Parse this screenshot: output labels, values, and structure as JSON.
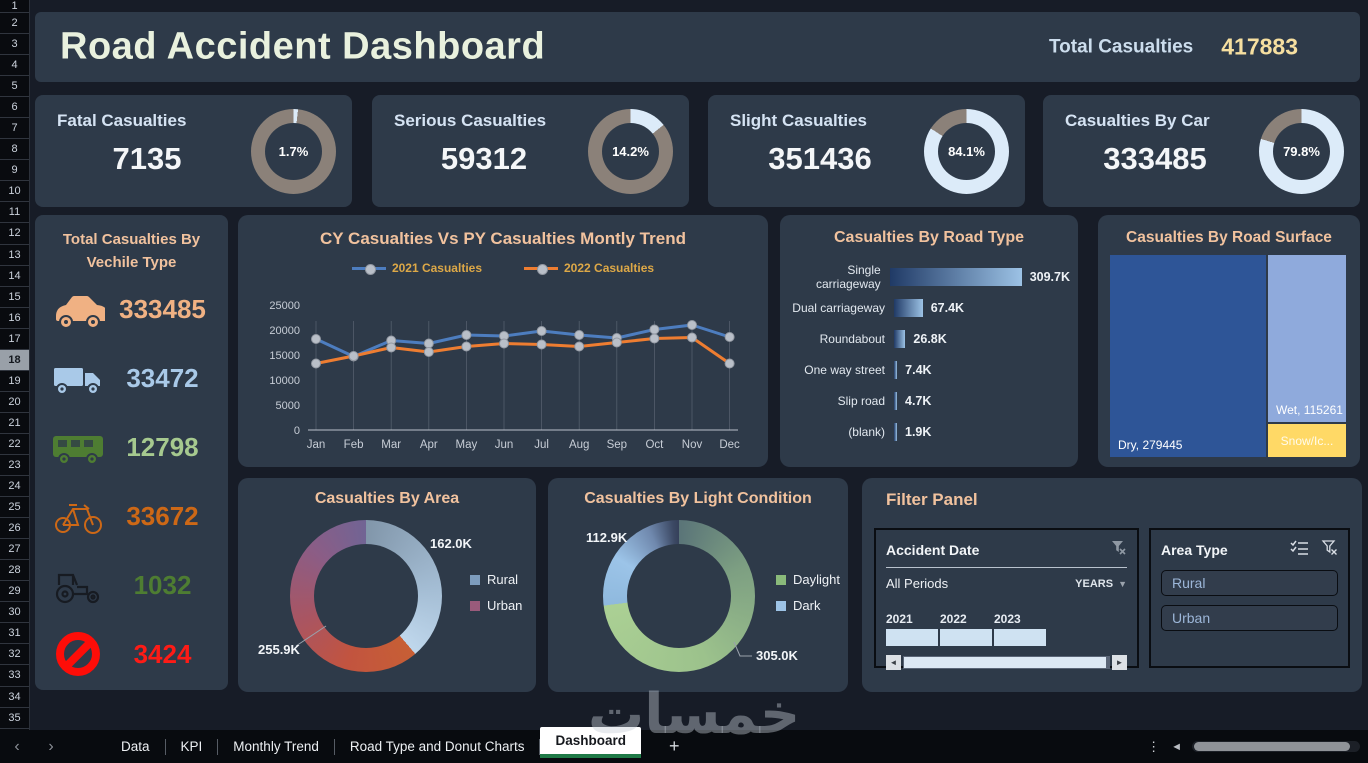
{
  "header": {
    "title": "Road Accident Dashboard",
    "total_label": "Total Casualties",
    "total_value": "417883"
  },
  "kpi_colors": {
    "value": "#dcebf9",
    "rest": "#8b8179"
  },
  "kpis": [
    {
      "title": "Fatal Casualties",
      "value": "7135",
      "pct": "1.7%",
      "pct_num": 1.7
    },
    {
      "title": "Serious Casualties",
      "value": "59312",
      "pct": "14.2%",
      "pct_num": 14.2
    },
    {
      "title": "Slight Casualties",
      "value": "351436",
      "pct": "84.1%",
      "pct_num": 84.1
    },
    {
      "title": "Casualties By Car",
      "value": "333485",
      "pct": "79.8%",
      "pct_num": 79.8
    }
  ],
  "vehicle_panel": {
    "title_line1": "Total Casualties By",
    "title_line2": "Vechile Type",
    "items": [
      {
        "icon": "car-icon",
        "value": "333485",
        "color": "#f0b183"
      },
      {
        "icon": "truck-icon",
        "value": "33472",
        "color": "#a9c9e8"
      },
      {
        "icon": "bus-icon",
        "value": "12798",
        "color": "#a6c98f"
      },
      {
        "icon": "bicycle-icon",
        "value": "33672",
        "color": "#cd6816"
      },
      {
        "icon": "tractor-icon",
        "value": "1032",
        "color": "#4e7d32"
      },
      {
        "icon": "no-entry-icon",
        "value": "3424",
        "color": "#fe1b16"
      }
    ]
  },
  "chart_data": [
    {
      "type": "line",
      "title": "CY Casualties Vs PY Casualties Montly Trend",
      "categories": [
        "Jan",
        "Feb",
        "Mar",
        "Apr",
        "May",
        "Jun",
        "Jul",
        "Aug",
        "Sep",
        "Oct",
        "Nov",
        "Dec"
      ],
      "series": [
        {
          "name": "2021 Casualties",
          "color": "#4d7dbf",
          "values": [
            18200,
            14700,
            17900,
            17300,
            19000,
            18800,
            19800,
            19000,
            18400,
            20100,
            21000,
            18600
          ]
        },
        {
          "name": "2022 Casualties",
          "color": "#ee7d31",
          "values": [
            13300,
            14800,
            16500,
            15600,
            16700,
            17300,
            17100,
            16700,
            17500,
            18300,
            18500,
            13300
          ]
        }
      ],
      "y_ticks": [
        0,
        5000,
        10000,
        15000,
        20000,
        25000
      ],
      "ylim": [
        0,
        25000
      ],
      "legend_position": "top",
      "grid": "category-droplines"
    },
    {
      "type": "bar",
      "title": "Casualties By Road Type",
      "categories": [
        "Single carriageway",
        "Dual carriageway",
        "Roundabout",
        "One way street",
        "Slip road",
        "(blank)"
      ],
      "values": [
        309.7,
        67.4,
        26.8,
        7.4,
        4.7,
        1.9
      ],
      "value_labels": [
        "309.7K",
        "67.4K",
        "26.8K",
        "7.4K",
        "4.7K",
        "1.9K"
      ],
      "orientation": "horizontal"
    },
    {
      "type": "heatmap",
      "subtype": "treemap",
      "title": "Casualties By Road Surface",
      "items": [
        {
          "label": "Dry, 279445",
          "value": 279445,
          "color": "#2e5597"
        },
        {
          "label": "Wet, 115261",
          "value": 115261,
          "color": "#8faadc"
        },
        {
          "label": "Snow/Ic...",
          "value": 23177,
          "color": "#ffd966"
        }
      ]
    },
    {
      "type": "pie",
      "subtype": "donut",
      "title": "Casualties By Area",
      "legend": [
        {
          "name": "Rural",
          "color": "#7d9cbd"
        },
        {
          "name": "Urban",
          "color": "#9a5b7b"
        }
      ],
      "labels": [
        "162.0K",
        "255.9K"
      ],
      "values": [
        162000,
        255900
      ],
      "stops_a": [
        [
          "#8196aa",
          0
        ],
        [
          "#a4bdd4",
          0.6
        ],
        [
          "#bfd7ec",
          1
        ]
      ],
      "stops_b": [
        [
          "#c75f35",
          0
        ],
        [
          "#c2543f",
          0.25
        ],
        [
          "#a95562",
          0.5
        ],
        [
          "#8b5d86",
          0.78
        ],
        [
          "#716494",
          1
        ]
      ]
    },
    {
      "type": "pie",
      "subtype": "donut",
      "title": "Casualties By Light Condition",
      "legend": [
        {
          "name": "Daylight",
          "color": "#8aba7a"
        },
        {
          "name": "Dark",
          "color": "#9dc3e6"
        }
      ],
      "labels": [
        "305.0K",
        "112.9K"
      ],
      "values": [
        305000,
        112900
      ],
      "stops_a": [
        [
          "#5a7478",
          0
        ],
        [
          "#7d9f82",
          0.25
        ],
        [
          "#9cc28c",
          0.6
        ],
        [
          "#abd094",
          1
        ]
      ],
      "stops_b": [
        [
          "#8fb9de",
          0
        ],
        [
          "#9cc4e8",
          0.4
        ],
        [
          "#7089ae",
          0.75
        ],
        [
          "#3c4964",
          0.95
        ],
        [
          "#35405a",
          1
        ]
      ]
    }
  ],
  "filter_panel": {
    "title": "Filter Panel",
    "date_slicer": {
      "title": "Accident Date",
      "period_label": "All Periods",
      "granularity": "YEARS",
      "years": [
        "2021",
        "2022",
        "2023"
      ]
    },
    "area_slicer": {
      "title": "Area Type",
      "options": [
        "Rural",
        "Urban"
      ]
    }
  },
  "sheet_bar": {
    "nav_prev": "‹",
    "nav_next": "›",
    "tabs": [
      {
        "label": "Data",
        "active": false
      },
      {
        "label": "KPI",
        "active": false
      },
      {
        "label": "Monthly Trend",
        "active": false
      },
      {
        "label": "Road Type and Donut Charts",
        "active": false
      },
      {
        "label": "Dashboard",
        "active": true
      }
    ],
    "add_label": "+"
  },
  "spreadsheet": {
    "row_numbers": [
      1,
      2,
      3,
      4,
      5,
      6,
      7,
      8,
      9,
      10,
      11,
      12,
      13,
      14,
      15,
      16,
      17,
      18,
      19,
      20,
      21,
      22,
      23,
      24,
      25,
      26,
      27,
      28,
      29,
      30,
      31,
      32,
      33,
      34,
      35
    ],
    "selected_row": 18
  },
  "watermark": {
    "text": "خمسات"
  }
}
